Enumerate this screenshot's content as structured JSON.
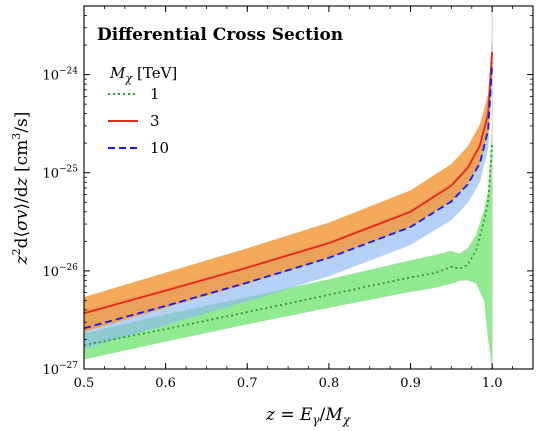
{
  "chart_data": {
    "type": "area",
    "title": "Differential Cross Section",
    "xlabel": "z = Eγ/Mχ",
    "ylabel": "z²d⟨σv⟩/dz [cm³/s]",
    "xlim": [
      0.5,
      1.05
    ],
    "ylim": [
      1e-27,
      5e-24
    ],
    "yscale": "log",
    "grid": false,
    "x_ticks": [
      0.5,
      0.6,
      0.7,
      0.8,
      0.9,
      1.0
    ],
    "x_tick_labels": [
      "0.5",
      "0.6",
      "0.7",
      "0.8",
      "0.9",
      "1.0"
    ],
    "y_ticks": [
      1e-27,
      1e-26,
      1e-25,
      1e-24
    ],
    "y_tick_labels": [
      {
        "base": "10",
        "exp": "−27"
      },
      {
        "base": "10",
        "exp": "−26"
      },
      {
        "base": "10",
        "exp": "−25"
      },
      {
        "base": "10",
        "exp": "−24"
      }
    ],
    "legend": {
      "title_symbol": "M",
      "title_sub": "χ",
      "title_unit": "[TeV]",
      "placement": "upper-left"
    },
    "series": [
      {
        "name": "1",
        "color": "#2ca02c",
        "band_color": "#7ee67e",
        "style": "dotted",
        "x": [
          0.5,
          0.6,
          0.7,
          0.8,
          0.9,
          0.93,
          0.95,
          0.96,
          0.97,
          0.98,
          0.99,
          0.995,
          1.0
        ],
        "y": [
          1.75e-27,
          2.55e-27,
          3.8e-27,
          5.7e-27,
          8.6e-27,
          9.5e-27,
          1.1e-26,
          1.05e-26,
          1.15e-26,
          1.6e-26,
          3.2e-26,
          5e-26,
          2e-25
        ],
        "band_low": [
          1.25e-27,
          1.9e-27,
          2.85e-27,
          4.2e-27,
          6.1e-27,
          6.7e-27,
          7.4e-27,
          7.9e-27,
          8e-27,
          7.5e-27,
          5e-27,
          2e-27,
          1e-27
        ],
        "band_high": [
          2.3e-27,
          3.6e-27,
          5.4e-27,
          8.2e-27,
          1.28e-26,
          1.45e-26,
          1.6e-26,
          1.5e-26,
          1.7e-26,
          2.3e-26,
          4.2e-26,
          6.5e-26,
          3e-25
        ]
      },
      {
        "name": "3",
        "color": "#e8261a",
        "band_color": "#f39a3e",
        "style": "solid",
        "x": [
          0.5,
          0.6,
          0.7,
          0.8,
          0.9,
          0.95,
          0.97,
          0.985,
          0.995,
          1.0
        ],
        "y": [
          3.7e-27,
          6.3e-27,
          1.08e-26,
          1.92e-26,
          4e-26,
          7.4e-26,
          1.12e-25,
          1.9e-25,
          4e-25,
          1.7e-24
        ],
        "band_low": [
          2.4e-27,
          4.2e-27,
          7.4e-27,
          1.35e-26,
          2.8e-26,
          5.1e-26,
          7.6e-26,
          1.25e-25,
          2.6e-25,
          1.2e-24
        ],
        "band_high": [
          5.4e-27,
          9.6e-27,
          1.7e-26,
          3.1e-26,
          6.6e-26,
          1.23e-25,
          1.85e-25,
          3.1e-25,
          6.3e-25,
          2.5e-24
        ]
      },
      {
        "name": "10",
        "color": "#1a1ae6",
        "band_color": "#8fb8f2",
        "style": "dashed",
        "x": [
          0.5,
          0.6,
          0.7,
          0.8,
          0.9,
          0.95,
          0.97,
          0.985,
          0.995,
          1.0
        ],
        "y": [
          2.6e-27,
          4.4e-27,
          7.6e-27,
          1.36e-26,
          2.8e-26,
          5.1e-26,
          7.6e-26,
          1.25e-25,
          2.7e-25,
          1.3e-24
        ],
        "band_low": [
          1.6e-27,
          2.8e-27,
          4.9e-27,
          8.8e-27,
          1.83e-26,
          3.3e-26,
          4.9e-26,
          8e-26,
          1.75e-25,
          8e-25
        ],
        "band_high": [
          4e-27,
          6.7e-27,
          1.15e-26,
          2.05e-26,
          4.3e-26,
          8e-26,
          1.2e-25,
          2e-25,
          4.3e-25,
          3e-24
        ]
      }
    ]
  }
}
